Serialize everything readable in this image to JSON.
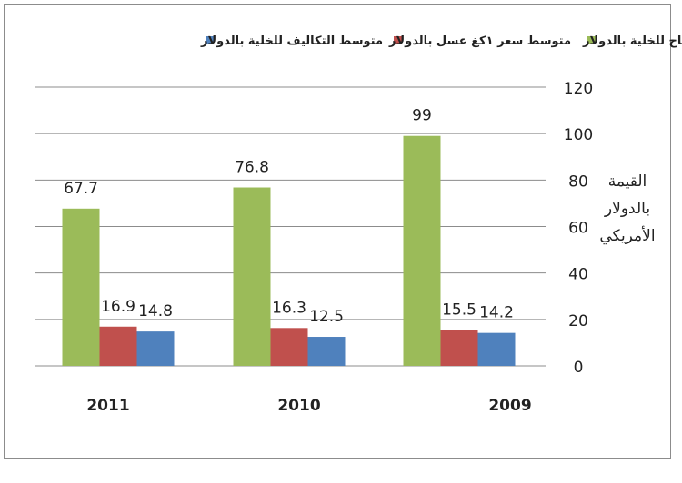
{
  "chart_data": {
    "type": "bar",
    "categories": [
      "2011",
      "2010",
      "2009"
    ],
    "series": [
      {
        "name": "متوسط قيمة الإنتاج للخلية بالدولار",
        "color": "#9bbb59",
        "values": [
          67.7,
          76.8,
          99
        ]
      },
      {
        "name": "متوسط سعر ١كغ عسل بالدولار",
        "color": "#c0504d",
        "values": [
          16.9,
          16.3,
          15.5
        ]
      },
      {
        "name": "متوسط التكاليف للخلية بالدولار",
        "color": "#4f81bd",
        "values": [
          14.8,
          12.5,
          14.2
        ]
      }
    ],
    "ylabel": "القيمة بالدولار الأمريكي",
    "ylim": [
      0,
      120
    ],
    "yticks": [
      0,
      20,
      40,
      60,
      80,
      100,
      120
    ],
    "axis_side": "right",
    "grid": true,
    "legend_position": "top"
  }
}
